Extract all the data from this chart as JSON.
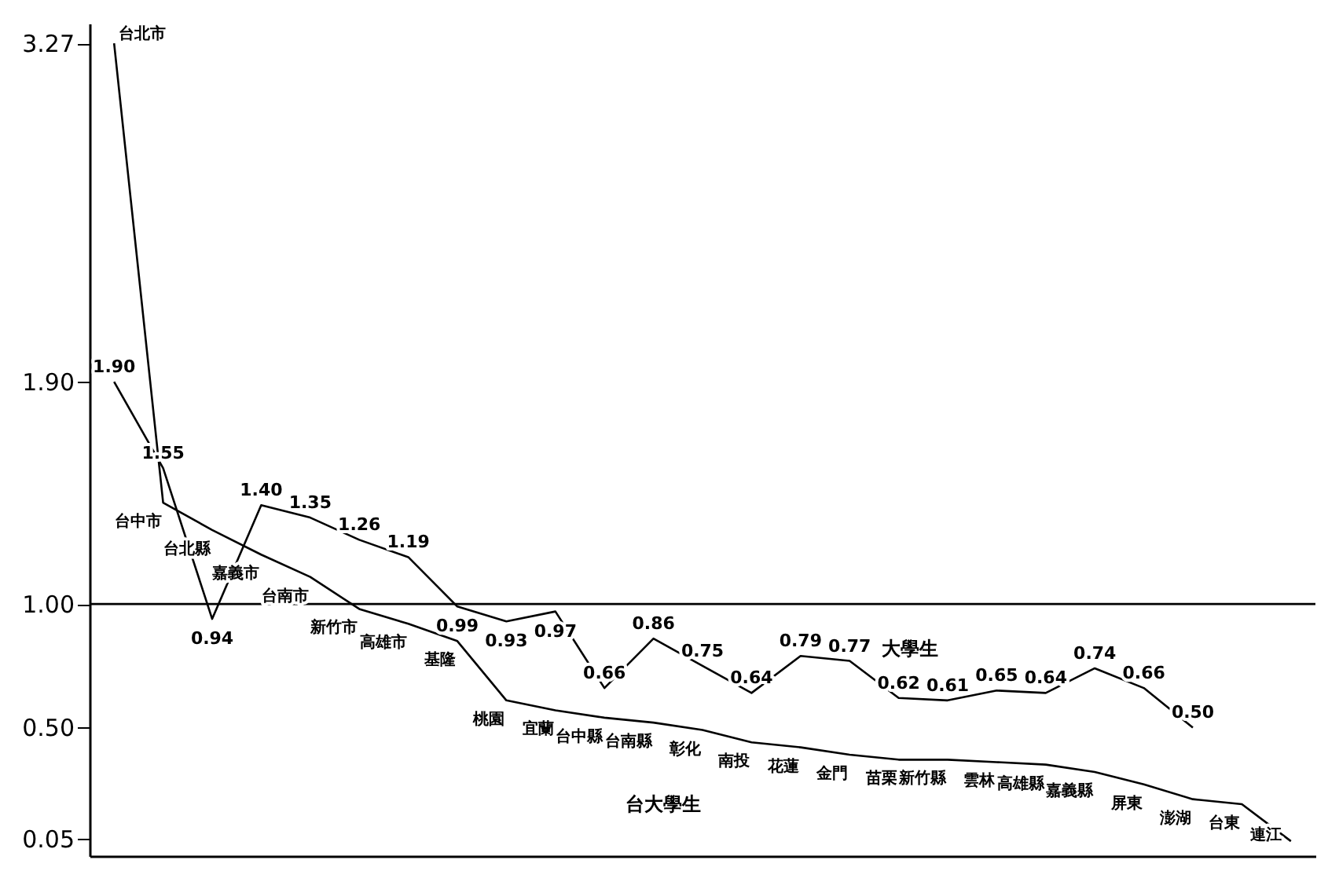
{
  "chart_data": {
    "type": "line",
    "categories": [
      null,
      null,
      null,
      null,
      null,
      null,
      null,
      null,
      null,
      null,
      null,
      null,
      null,
      null,
      null,
      null,
      null,
      null,
      null,
      null,
      null,
      null,
      null,
      null,
      null
    ],
    "series": [
      {
        "color": "#000000",
        "values": [
          3.27,
          1.41,
          1.3,
          1.2,
          1.11,
          0.98,
          0.92,
          0.85,
          0.61,
          0.57,
          0.54,
          0.52,
          0.49,
          0.44,
          0.42,
          0.39,
          0.37,
          0.37,
          0.36,
          0.35,
          0.32,
          0.27,
          0.21,
          0.19,
          0.04
        ],
        "value_labels": [
          "台北市",
          "台中市",
          "台北縣",
          "嘉義市",
          "台南市",
          "新竹市",
          "高雄市",
          "基隆",
          "桃園",
          "宜蘭",
          "台中縣",
          "台南縣",
          "彰化",
          "南投",
          "花蓮",
          "金門",
          "苗栗",
          "新竹縣",
          "雲林",
          "高雄縣",
          "嘉義縣",
          "屏東",
          "澎湖",
          "台東",
          "連江"
        ]
      },
      {
        "color": "#000000",
        "values": [
          1.9,
          1.55,
          0.94,
          1.4,
          1.35,
          1.26,
          1.19,
          0.99,
          0.93,
          0.97,
          0.66,
          0.86,
          0.75,
          0.64,
          0.79,
          0.77,
          0.62,
          0.61,
          0.65,
          0.64,
          0.74,
          0.66,
          0.5,
          null,
          null
        ],
        "value_labels": [
          "1.90",
          "1.55",
          "0.94",
          "1.40",
          "1.35",
          "1.26",
          "1.19",
          "0.99",
          "0.93",
          "0.97",
          "0.66",
          "0.86",
          "0.75",
          "0.64",
          "0.79",
          "0.77",
          "0.62",
          "0.61",
          "0.65",
          "0.64",
          "0.74",
          "0.66",
          "0.50",
          null,
          null
        ]
      }
    ],
    "ylim": [
      -0.02,
      3.35
    ],
    "yticks": [
      {
        "value": 0.05,
        "label": "0.05"
      },
      {
        "value": 0.5,
        "label": "0.50"
      },
      {
        "value": 1,
        "label": "1.00"
      },
      {
        "value": 1.9,
        "label": "1.90"
      },
      {
        "value": 3.27,
        "label": "3.27"
      }
    ],
    "ref_lines": [
      {
        "axis": "y",
        "value": 1,
        "color": "#000000"
      }
    ],
    "annotations": [
      "台大學生",
      "大學生"
    ],
    "tick_labels": "y",
    "grid": false,
    "marker": "none",
    "line_style": "solid"
  }
}
